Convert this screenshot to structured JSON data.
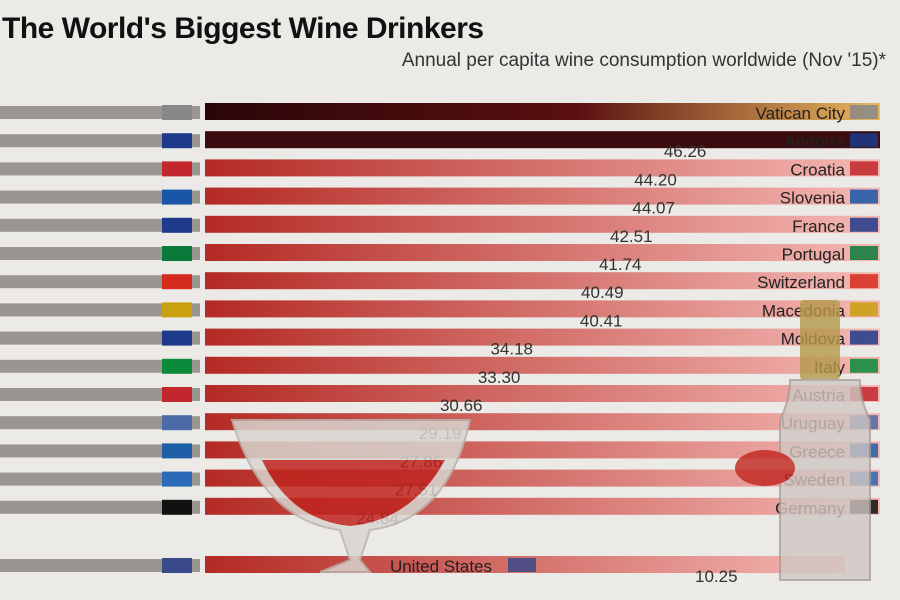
{
  "title": "The World's Biggest Wine Drinkers",
  "subtitle": "Annual per capita wine consumption worldwide (Nov '15)*",
  "chart_data": {
    "type": "bar",
    "orientation": "horizontal",
    "title": "The World's Biggest Wine Drinkers",
    "subtitle": "Annual per capita wine consumption worldwide (Nov '15)*",
    "categories": [
      "Vatican City",
      "Andorra",
      "Croatia",
      "Slovenia",
      "France",
      "Portugal",
      "Switzerland",
      "Macedonia",
      "Moldova",
      "Italy",
      "Austria",
      "Uruguay",
      "Greece",
      "Sweden",
      "Germany",
      "United States"
    ],
    "values": [
      null,
      46.26,
      44.2,
      44.07,
      42.51,
      41.74,
      40.49,
      40.41,
      34.18,
      33.3,
      30.66,
      29.19,
      27.86,
      27.51,
      24.84,
      10.25
    ],
    "value_labels": [
      "",
      "46.26",
      "44.20",
      "44.07",
      "42.51",
      "41.74",
      "40.49",
      "40.41",
      "34.18",
      "33.30",
      "30.66",
      "29.19",
      "27.86",
      "27.51",
      "24.84",
      "10.25"
    ],
    "grid": false,
    "legend": "none",
    "colors": {
      "bar_dark": "#3a0c10",
      "bar_mid": "#b42a24",
      "bar_light": "#f4b8b4",
      "background": "#eceae6",
      "glass_wine": "#c0241e"
    }
  }
}
